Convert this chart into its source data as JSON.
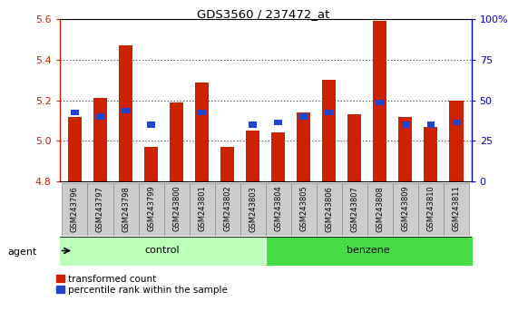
{
  "title": "GDS3560 / 237472_at",
  "samples": [
    "GSM243796",
    "GSM243797",
    "GSM243798",
    "GSM243799",
    "GSM243800",
    "GSM243801",
    "GSM243802",
    "GSM243803",
    "GSM243804",
    "GSM243805",
    "GSM243806",
    "GSM243807",
    "GSM243808",
    "GSM243809",
    "GSM243810",
    "GSM243811"
  ],
  "red_values": [
    5.12,
    5.21,
    5.47,
    4.97,
    5.19,
    5.29,
    4.97,
    5.05,
    5.04,
    5.14,
    5.3,
    5.13,
    5.59,
    5.12,
    5.07,
    5.2
  ],
  "blue_values": [
    5.14,
    5.12,
    5.15,
    5.08,
    null,
    5.14,
    null,
    5.08,
    5.09,
    5.12,
    5.14,
    null,
    5.19,
    5.08,
    5.08,
    5.09
  ],
  "ymin": 4.8,
  "ymax": 5.6,
  "yticks": [
    4.8,
    5.0,
    5.2,
    5.4,
    5.6
  ],
  "right_yticks": [
    0,
    25,
    50,
    75,
    100
  ],
  "right_yticklabels": [
    "0",
    "25",
    "50",
    "75",
    "100%"
  ],
  "bar_color": "#cc2200",
  "blue_color": "#2244cc",
  "bar_width": 0.55,
  "control_count": 8,
  "benzene_count": 8,
  "control_label": "control",
  "benzene_label": "benzene",
  "agent_label": "agent",
  "legend1": "transformed count",
  "legend2": "percentile rank within the sample",
  "bg_color": "#ffffff",
  "tick_color_left": "#cc2200",
  "tick_color_right": "#0000cc",
  "grid_color": "#000000",
  "control_color": "#bbffbb",
  "benzene_color": "#44dd44",
  "xticklabel_bg": "#cccccc"
}
